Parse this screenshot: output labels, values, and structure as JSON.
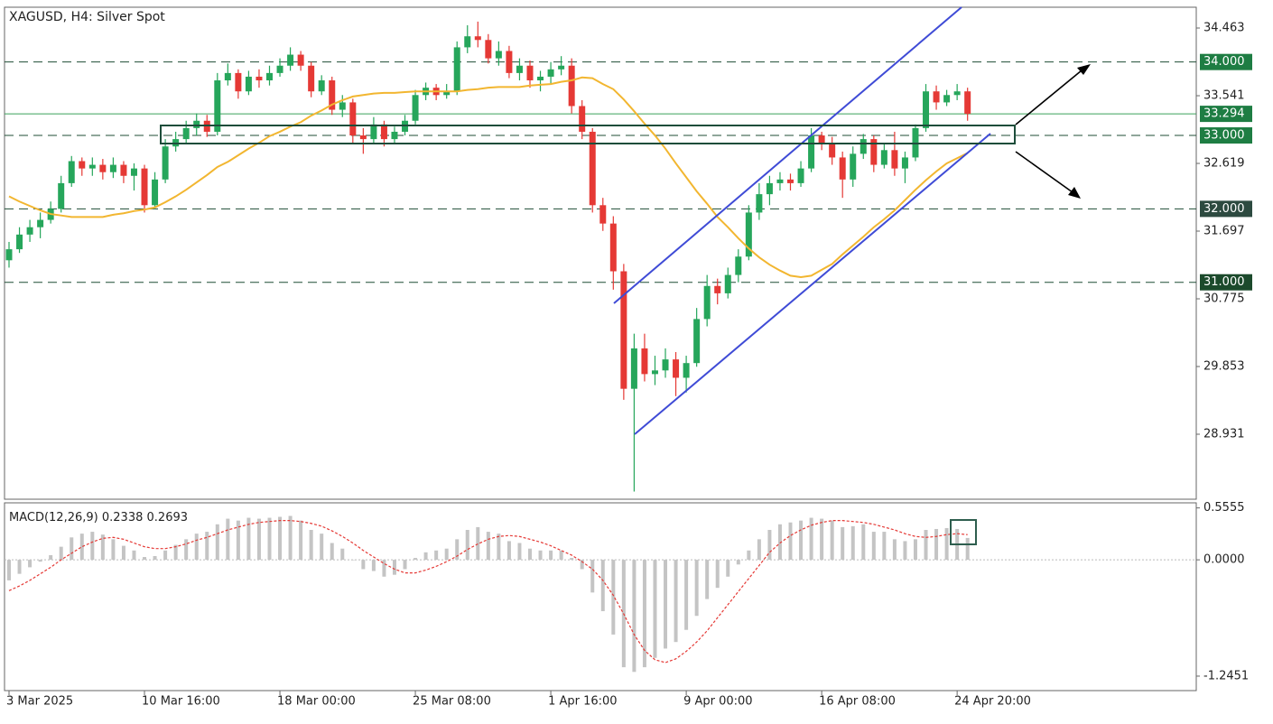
{
  "chart_data": [
    {
      "type": "candlestick",
      "title": "XAGUSD, H4:  Silver Spot",
      "categories": [
        "3 Mar 2025",
        null,
        null,
        null,
        null,
        null,
        null,
        null,
        null,
        null,
        null,
        null,
        null,
        "10 Mar 16:00",
        null,
        null,
        null,
        null,
        null,
        null,
        null,
        null,
        null,
        null,
        null,
        null,
        "18 Mar 00:00",
        null,
        null,
        null,
        null,
        null,
        null,
        null,
        null,
        null,
        null,
        null,
        null,
        "25 Mar 08:00",
        null,
        null,
        null,
        null,
        null,
        null,
        null,
        null,
        null,
        null,
        null,
        null,
        "1 Apr 16:00",
        null,
        null,
        null,
        null,
        null,
        null,
        null,
        null,
        null,
        null,
        null,
        null,
        "9 Apr 00:00",
        null,
        null,
        null,
        null,
        null,
        null,
        null,
        null,
        null,
        null,
        null,
        null,
        "16 Apr 08:00",
        null,
        null,
        null,
        null,
        null,
        null,
        null,
        null,
        null,
        null,
        null,
        null,
        "24 Apr 20:00",
        null
      ],
      "open": [
        31.3,
        31.45,
        31.65,
        31.75,
        31.85,
        32.0,
        32.35,
        32.65,
        32.55,
        32.6,
        32.5,
        32.6,
        32.45,
        32.55,
        32.05,
        32.4,
        32.85,
        32.95,
        33.1,
        33.2,
        33.05,
        33.75,
        33.85,
        33.6,
        33.8,
        33.75,
        33.85,
        33.95,
        34.1,
        33.95,
        33.6,
        33.75,
        33.35,
        33.45,
        33.0,
        32.95,
        33.15,
        32.95,
        33.05,
        33.2,
        33.55,
        33.65,
        33.55,
        33.6,
        34.2,
        34.35,
        34.3,
        34.05,
        34.15,
        33.85,
        33.95,
        33.75,
        33.8,
        33.9,
        33.95,
        33.4,
        33.05,
        32.05,
        31.8,
        31.15,
        29.55,
        30.1,
        29.75,
        29.8,
        29.95,
        29.7,
        29.9,
        30.5,
        30.95,
        30.85,
        31.1,
        31.35,
        31.95,
        32.2,
        32.35,
        32.4,
        32.35,
        32.55,
        33.0,
        32.9,
        32.7,
        32.4,
        32.75,
        32.95,
        32.6,
        32.8,
        32.55,
        32.7,
        33.1,
        33.6,
        33.45,
        33.55,
        33.6
      ],
      "high": [
        31.55,
        31.75,
        31.85,
        31.95,
        32.1,
        32.45,
        32.72,
        32.7,
        32.7,
        32.68,
        32.7,
        32.65,
        32.62,
        32.6,
        32.5,
        32.95,
        33.05,
        33.2,
        33.3,
        33.28,
        33.85,
        33.98,
        33.9,
        33.88,
        33.9,
        33.95,
        34.05,
        34.2,
        34.15,
        34.0,
        33.82,
        33.8,
        33.55,
        33.5,
        33.1,
        33.25,
        33.2,
        33.12,
        33.28,
        33.62,
        33.72,
        33.7,
        33.7,
        34.28,
        34.5,
        34.55,
        34.38,
        34.28,
        34.22,
        34.05,
        34.02,
        33.88,
        34.0,
        34.08,
        34.05,
        33.48,
        33.1,
        32.15,
        31.9,
        31.25,
        30.3,
        30.3,
        30.0,
        30.1,
        30.05,
        30.0,
        30.65,
        31.1,
        31.05,
        31.2,
        31.45,
        32.05,
        32.35,
        32.45,
        32.5,
        32.48,
        32.65,
        33.1,
        33.05,
        32.98,
        32.78,
        32.85,
        33.02,
        33.0,
        32.88,
        33.05,
        32.78,
        33.15,
        33.7,
        33.68,
        33.62,
        33.7,
        33.65
      ],
      "low": [
        31.2,
        31.4,
        31.55,
        31.6,
        31.8,
        31.95,
        32.3,
        32.45,
        32.45,
        32.4,
        32.42,
        32.35,
        32.25,
        31.95,
        32.0,
        32.35,
        32.78,
        32.9,
        33.0,
        32.98,
        33.0,
        33.68,
        33.5,
        33.55,
        33.65,
        33.68,
        33.8,
        33.88,
        33.88,
        33.52,
        33.55,
        33.28,
        33.25,
        32.9,
        32.75,
        32.88,
        32.85,
        32.88,
        33.0,
        33.15,
        33.48,
        33.48,
        33.5,
        33.55,
        34.12,
        34.2,
        33.98,
        33.95,
        33.78,
        33.75,
        33.65,
        33.6,
        33.7,
        33.82,
        33.3,
        32.95,
        31.95,
        31.7,
        30.9,
        29.4,
        28.15,
        29.65,
        29.6,
        29.7,
        29.45,
        29.5,
        29.85,
        30.4,
        30.7,
        30.78,
        31.0,
        31.3,
        31.85,
        32.05,
        32.25,
        32.25,
        32.3,
        32.5,
        32.8,
        32.6,
        32.15,
        32.3,
        32.68,
        32.5,
        32.55,
        32.45,
        32.35,
        32.65,
        33.05,
        33.35,
        33.4,
        33.48,
        33.2
      ],
      "close": [
        31.45,
        31.65,
        31.75,
        31.85,
        32.0,
        32.35,
        32.65,
        32.55,
        32.6,
        32.5,
        32.6,
        32.45,
        32.55,
        32.05,
        32.4,
        32.85,
        32.95,
        33.1,
        33.2,
        33.05,
        33.75,
        33.85,
        33.6,
        33.8,
        33.75,
        33.85,
        33.95,
        34.1,
        33.95,
        33.6,
        33.75,
        33.35,
        33.45,
        33.0,
        32.95,
        33.15,
        32.95,
        33.05,
        33.2,
        33.55,
        33.65,
        33.55,
        33.6,
        34.2,
        34.35,
        34.3,
        34.05,
        34.15,
        33.85,
        33.95,
        33.75,
        33.8,
        33.9,
        33.95,
        33.4,
        33.05,
        32.05,
        31.8,
        31.15,
        29.55,
        30.1,
        29.75,
        29.8,
        29.95,
        29.7,
        29.9,
        30.5,
        30.95,
        30.85,
        31.1,
        31.35,
        31.95,
        32.2,
        32.35,
        32.4,
        32.35,
        32.55,
        33.0,
        32.9,
        32.7,
        32.4,
        32.75,
        32.95,
        32.6,
        32.8,
        32.55,
        32.7,
        33.1,
        33.6,
        33.45,
        33.55,
        33.6,
        33.294
      ],
      "up_color": "#26a65b",
      "down_color": "#e53935",
      "ma_color": "#f2b630",
      "ma_values": [
        32.17,
        32.1,
        32.04,
        31.98,
        31.93,
        31.91,
        31.89,
        31.89,
        31.89,
        31.89,
        31.92,
        31.94,
        31.97,
        31.99,
        32.02,
        32.09,
        32.17,
        32.26,
        32.36,
        32.46,
        32.57,
        32.64,
        32.73,
        32.82,
        32.9,
        32.99,
        33.05,
        33.12,
        33.18,
        33.27,
        33.34,
        33.42,
        33.48,
        33.53,
        33.55,
        33.57,
        33.58,
        33.58,
        33.59,
        33.6,
        33.6,
        33.6,
        33.6,
        33.6,
        33.62,
        33.63,
        33.65,
        33.66,
        33.66,
        33.66,
        33.68,
        33.69,
        33.7,
        33.73,
        33.75,
        33.79,
        33.78,
        33.7,
        33.63,
        33.49,
        33.33,
        33.16,
        33.0,
        32.82,
        32.62,
        32.43,
        32.24,
        32.07,
        31.89,
        31.75,
        31.6,
        31.46,
        31.34,
        31.24,
        31.16,
        31.09,
        31.07,
        31.09,
        31.17,
        31.25,
        31.38,
        31.5,
        31.62,
        31.75,
        31.86,
        31.98,
        32.12,
        32.26,
        32.39,
        32.51,
        32.62,
        32.69,
        32.76
      ],
      "ylim": [
        28.046,
        34.746
      ],
      "yticks": [
        34.463,
        33.541,
        32.619,
        31.697,
        30.775,
        29.853,
        28.931
      ],
      "levels": [
        {
          "value": 34,
          "label": "34.000",
          "color": "#1e7d43"
        },
        {
          "value": 33,
          "label": "33.000",
          "color": "#1e7d43"
        },
        {
          "value": 32,
          "label": "32.000",
          "color": "#2d4a40"
        },
        {
          "value": 31,
          "label": "31.000",
          "color": "#1c4a2c"
        }
      ],
      "last_price": {
        "value": 33.294,
        "color": "#1e7d43"
      }
    },
    {
      "type": "macd",
      "title": "MACD(12,26,9)",
      "histogram": {
        "color": "#c4c4c4",
        "values": [
          -0.22,
          -0.15,
          -0.08,
          -0.02,
          0.05,
          0.14,
          0.24,
          0.28,
          0.3,
          0.27,
          0.22,
          0.15,
          0.1,
          0.03,
          0.04,
          0.1,
          0.16,
          0.22,
          0.28,
          0.3,
          0.38,
          0.44,
          0.42,
          0.45,
          0.44,
          0.45,
          0.46,
          0.47,
          0.42,
          0.32,
          0.28,
          0.18,
          0.12,
          0.0,
          -0.1,
          -0.12,
          -0.18,
          -0.16,
          -0.1,
          0.02,
          0.08,
          0.1,
          0.12,
          0.22,
          0.32,
          0.35,
          0.3,
          0.28,
          0.2,
          0.18,
          0.12,
          0.1,
          0.1,
          0.1,
          0.02,
          -0.1,
          -0.35,
          -0.55,
          -0.8,
          -1.15,
          -1.2,
          -1.15,
          -1.05,
          -0.95,
          -0.88,
          -0.75,
          -0.6,
          -0.42,
          -0.3,
          -0.18,
          -0.05,
          0.1,
          0.22,
          0.32,
          0.38,
          0.4,
          0.42,
          0.45,
          0.44,
          0.42,
          0.35,
          0.36,
          0.38,
          0.3,
          0.3,
          0.22,
          0.2,
          0.22,
          0.32,
          0.33,
          0.34,
          0.33,
          0.2338
        ]
      },
      "signal": {
        "color": "#e53935",
        "values": [
          -0.33,
          -0.28,
          -0.22,
          -0.15,
          -0.08,
          0.0,
          0.07,
          0.14,
          0.19,
          0.23,
          0.24,
          0.22,
          0.18,
          0.14,
          0.12,
          0.12,
          0.14,
          0.17,
          0.21,
          0.24,
          0.28,
          0.32,
          0.35,
          0.38,
          0.4,
          0.41,
          0.42,
          0.42,
          0.41,
          0.39,
          0.36,
          0.31,
          0.25,
          0.18,
          0.1,
          0.03,
          -0.04,
          -0.1,
          -0.14,
          -0.14,
          -0.11,
          -0.07,
          -0.02,
          0.04,
          0.11,
          0.17,
          0.22,
          0.25,
          0.26,
          0.25,
          0.22,
          0.19,
          0.15,
          0.1,
          0.05,
          -0.02,
          -0.1,
          -0.22,
          -0.38,
          -0.58,
          -0.8,
          -0.97,
          -1.07,
          -1.1,
          -1.06,
          -0.98,
          -0.88,
          -0.76,
          -0.62,
          -0.48,
          -0.34,
          -0.2,
          -0.06,
          0.08,
          0.18,
          0.26,
          0.32,
          0.37,
          0.4,
          0.42,
          0.42,
          0.41,
          0.4,
          0.38,
          0.35,
          0.32,
          0.28,
          0.25,
          0.24,
          0.25,
          0.27,
          0.28,
          0.2693
        ]
      },
      "ylim": [
        -1.4,
        0.61
      ],
      "yticks": [
        0.5555,
        {
          "value": 0,
          "label": "0.0000"
        },
        -1.2451
      ]
    }
  ]
}
